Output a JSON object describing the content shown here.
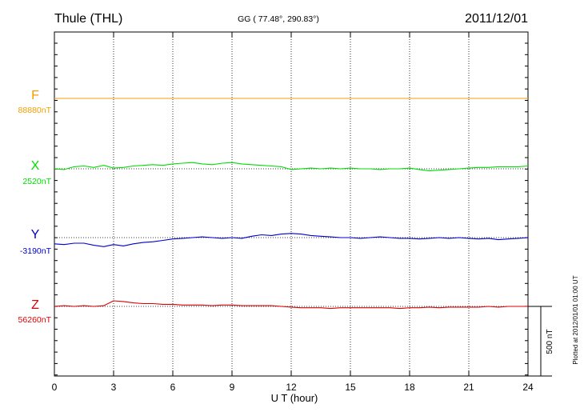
{
  "header": {
    "station": "Thule (THL)",
    "coords": "GG ( 77.48°, 290.83°)",
    "date": "2011/12/01"
  },
  "footer_note": "Plotted at 2012/01/01 01:00 UT",
  "scale_bar_label": "500 nT",
  "colors": {
    "F": "#f0a000",
    "X": "#00dd00",
    "Y": "#0000cc",
    "Z": "#dd0000"
  },
  "chart_data": {
    "type": "line",
    "xlabel": "U T (hour)",
    "xlim": [
      0,
      24
    ],
    "xticks": [
      0,
      3,
      6,
      9,
      12,
      15,
      18,
      21,
      24
    ],
    "grid": true,
    "scale_bar_nT": 500,
    "series": [
      {
        "name": "F",
        "baseline_label": "88880nT",
        "x": [
          0,
          24
        ],
        "y": [
          0,
          0
        ]
      },
      {
        "name": "X",
        "baseline_label": "2520nT",
        "x": [
          0,
          0.5,
          1,
          1.5,
          2,
          2.5,
          3,
          3.5,
          4,
          4.5,
          5,
          5.5,
          6,
          6.5,
          7,
          7.5,
          8,
          8.5,
          9,
          9.5,
          10,
          10.5,
          11,
          11.5,
          12,
          12.5,
          13,
          13.5,
          14,
          14.5,
          15,
          15.5,
          16,
          16.5,
          17,
          17.5,
          18,
          18.5,
          19,
          19.5,
          20,
          20.5,
          21,
          21.5,
          22,
          22.5,
          23,
          23.5,
          24
        ],
        "y": [
          0,
          -5,
          15,
          20,
          10,
          25,
          5,
          10,
          20,
          25,
          30,
          25,
          35,
          40,
          45,
          35,
          30,
          40,
          45,
          35,
          30,
          25,
          20,
          15,
          -5,
          0,
          5,
          0,
          5,
          0,
          5,
          0,
          0,
          -5,
          0,
          0,
          5,
          -5,
          -15,
          -10,
          -5,
          0,
          5,
          10,
          10,
          15,
          15,
          15,
          20
        ]
      },
      {
        "name": "Y",
        "baseline_label": "-3190nT",
        "x": [
          0,
          0.5,
          1,
          1.5,
          2,
          2.5,
          3,
          3.5,
          4,
          4.5,
          5,
          5.5,
          6,
          6.5,
          7,
          7.5,
          8,
          8.5,
          9,
          9.5,
          10,
          10.5,
          11,
          11.5,
          12,
          12.5,
          13,
          13.5,
          14,
          14.5,
          15,
          15.5,
          16,
          16.5,
          17,
          17.5,
          18,
          18.5,
          19,
          19.5,
          20,
          20.5,
          21,
          21.5,
          22,
          22.5,
          23,
          23.5,
          24
        ],
        "y": [
          -45,
          -50,
          -40,
          -40,
          -55,
          -65,
          -50,
          -60,
          -45,
          -35,
          -30,
          -20,
          -10,
          -5,
          0,
          5,
          0,
          -5,
          0,
          -5,
          10,
          20,
          15,
          25,
          30,
          25,
          15,
          10,
          5,
          0,
          0,
          -5,
          0,
          5,
          0,
          -5,
          -5,
          -10,
          -5,
          0,
          -5,
          0,
          -5,
          -10,
          -5,
          -15,
          -10,
          -5,
          0
        ]
      },
      {
        "name": "Z",
        "baseline_label": "56260nT",
        "x": [
          0,
          0.5,
          1,
          1.5,
          2,
          2.5,
          3,
          3.5,
          4,
          4.5,
          5,
          5.5,
          6,
          6.5,
          7,
          7.5,
          8,
          8.5,
          9,
          9.5,
          10,
          10.5,
          11,
          11.5,
          12,
          12.5,
          13,
          13.5,
          14,
          14.5,
          15,
          15.5,
          16,
          16.5,
          17,
          17.5,
          18,
          18.5,
          19,
          19.5,
          20,
          20.5,
          21,
          21.5,
          22,
          22.5,
          23,
          23.5,
          24
        ],
        "y": [
          0,
          5,
          0,
          5,
          0,
          5,
          40,
          35,
          25,
          20,
          20,
          15,
          15,
          10,
          10,
          10,
          5,
          10,
          10,
          5,
          5,
          5,
          5,
          0,
          -5,
          -10,
          -10,
          -10,
          -15,
          -10,
          -10,
          -10,
          -10,
          -10,
          -10,
          -15,
          -10,
          -10,
          -5,
          -10,
          -5,
          -5,
          -5,
          -5,
          0,
          -5,
          0,
          0,
          0
        ]
      }
    ]
  }
}
